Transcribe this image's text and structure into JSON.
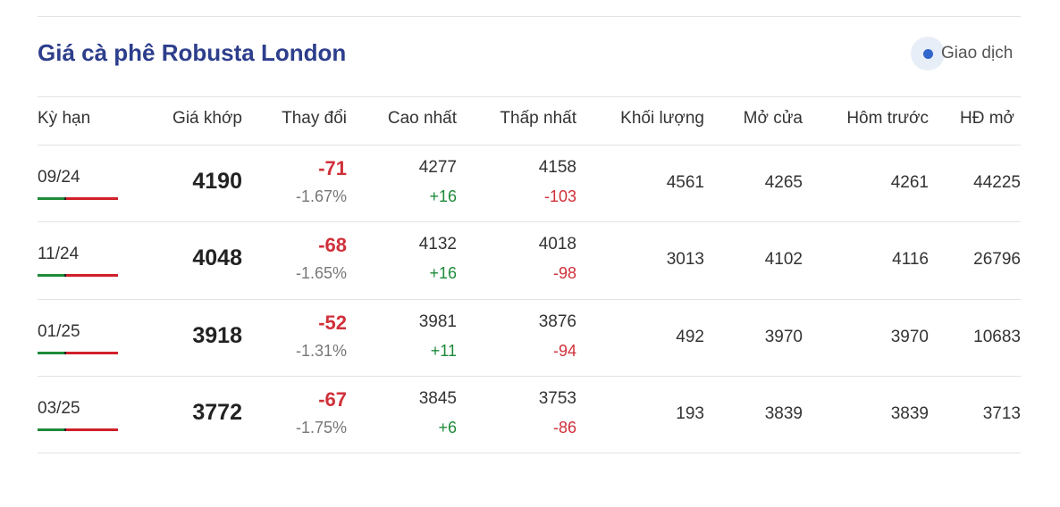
{
  "header": {
    "title": "Giá cà phê Robusta London",
    "status": "Giao dịch"
  },
  "table": {
    "columns": [
      "Kỳ hạn",
      "Giá khớp",
      "Thay đổi",
      "Cao nhất",
      "Thấp nhất",
      "Khối lượng",
      "Mở cửa",
      "Hôm trước",
      "HĐ mở"
    ],
    "rows": [
      {
        "term": "09/24",
        "price": 4190,
        "change": -71,
        "change_pct": "-1.67%",
        "high": 4277,
        "high_change": "+16",
        "low": 4158,
        "low_change": -103,
        "volume": 4561,
        "open": 4265,
        "previous": 4261,
        "open_interest": 44225
      },
      {
        "term": "11/24",
        "price": 4048,
        "change": -68,
        "change_pct": "-1.65%",
        "high": 4132,
        "high_change": "+16",
        "low": 4018,
        "low_change": -98,
        "volume": 3013,
        "open": 4102,
        "previous": 4116,
        "open_interest": 26796
      },
      {
        "term": "01/25",
        "price": 3918,
        "change": -52,
        "change_pct": "-1.31%",
        "high": 3981,
        "high_change": "+11",
        "low": 3876,
        "low_change": -94,
        "volume": 492,
        "open": 3970,
        "previous": 3970,
        "open_interest": 10683
      },
      {
        "term": "03/25",
        "price": 3772,
        "change": -67,
        "change_pct": "-1.75%",
        "high": 3845,
        "high_change": "+6",
        "low": 3753,
        "low_change": -86,
        "volume": 193,
        "open": 3839,
        "previous": 3839,
        "open_interest": 3713
      }
    ]
  }
}
